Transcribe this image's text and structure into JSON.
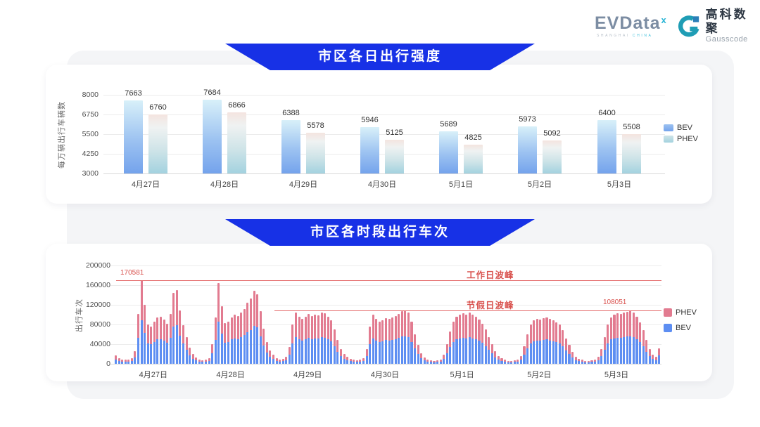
{
  "logo": {
    "evdata": "EVData",
    "evdata_sup": "x",
    "evdata_sub_1": "SHANGHAI ",
    "evdata_sub_2": "CHINA",
    "brand_cn": "高科数聚",
    "brand_en": "Gausscode"
  },
  "colors": {
    "banner_blue": "#1731e6",
    "bev_blue": "#5d8ef2",
    "phev_pink": "#e27b90",
    "annotation_red": "#d9534f"
  },
  "chart_data": [
    {
      "type": "bar",
      "title": "市区各日出行强度",
      "ylabel": "每万辆出行车辆数",
      "ymin": 3000,
      "ymax": 8000,
      "yticks": [
        8000,
        6750,
        5500,
        4250,
        3000
      ],
      "grid": true,
      "legend_position": "right",
      "categories": [
        "4月27日",
        "4月28日",
        "4月29日",
        "4月30日",
        "5月1日",
        "5月2日",
        "5月3日"
      ],
      "series": [
        {
          "name": "BEV",
          "values": [
            7663,
            7684,
            6388,
            5946,
            5689,
            5973,
            6400
          ]
        },
        {
          "name": "PHEV",
          "values": [
            6760,
            6866,
            5578,
            5125,
            4825,
            5092,
            5508
          ]
        }
      ]
    },
    {
      "type": "bar",
      "subtype": "stacked-hourly",
      "title": "市区各时段出行车次",
      "ylabel": "出行车次",
      "ymin": 0,
      "ymax": 200000,
      "yticks": [
        200000,
        160000,
        120000,
        80000,
        40000,
        0
      ],
      "grid": true,
      "legend_position": "right",
      "legend": [
        "PHEV",
        "BEV"
      ],
      "bev_share": 0.52,
      "annotations": [
        {
          "label": "工作日波峰",
          "value": 170581,
          "value_label": "170581"
        },
        {
          "label": "节假日波峰",
          "value": 108051,
          "value_label": "108051"
        }
      ],
      "days": [
        {
          "label": "4月27日",
          "totals": [
            17000,
            12000,
            9000,
            8000,
            8000,
            11000,
            26000,
            101000,
            170581,
            120000,
            80000,
            76000,
            86000,
            95000,
            96000,
            90000,
            82000,
            101000,
            145000,
            150000,
            109000,
            79000,
            55000,
            33000
          ]
        },
        {
          "label": "4月28日",
          "totals": [
            20000,
            13000,
            9000,
            7000,
            8000,
            12000,
            40000,
            94000,
            164000,
            117000,
            83000,
            86000,
            95000,
            100000,
            97000,
            104000,
            112000,
            124000,
            133000,
            148000,
            142000,
            107000,
            72000,
            45000
          ]
        },
        {
          "label": "4月29日",
          "totals": [
            27000,
            18000,
            12000,
            9000,
            10000,
            14000,
            35000,
            80000,
            104000,
            96000,
            92000,
            96000,
            101000,
            97000,
            100000,
            98000,
            105000,
            103000,
            96000,
            88000,
            70000,
            48000,
            30000,
            20000
          ]
        },
        {
          "label": "4月30日",
          "totals": [
            14000,
            10000,
            8000,
            7000,
            8000,
            11000,
            30000,
            76000,
            100000,
            91000,
            86000,
            89000,
            93000,
            91000,
            94000,
            97000,
            101000,
            107000,
            108000,
            104000,
            86000,
            60000,
            38000,
            22000
          ]
        },
        {
          "label": "5月1日",
          "totals": [
            13000,
            9000,
            7000,
            6000,
            7000,
            9000,
            18000,
            40000,
            66000,
            86000,
            96000,
            100000,
            103000,
            100000,
            104000,
            100000,
            96000,
            90000,
            82000,
            70000,
            54000,
            40000,
            26000,
            16000
          ]
        },
        {
          "label": "5月2日",
          "totals": [
            11000,
            8000,
            6000,
            6000,
            7000,
            9000,
            16000,
            36000,
            60000,
            80000,
            88000,
            92000,
            90000,
            93000,
            95000,
            92000,
            88000,
            85000,
            80000,
            68000,
            52000,
            38000,
            24000,
            14000
          ]
        },
        {
          "label": "5月3日",
          "totals": [
            10000,
            8000,
            6000,
            6000,
            7000,
            9000,
            14000,
            30000,
            55000,
            80000,
            95000,
            100000,
            103000,
            101000,
            104000,
            106000,
            108051,
            104000,
            96000,
            85000,
            68000,
            48000,
            30000,
            18000
          ]
        }
      ],
      "trailing_totals": [
        15000,
        32000
      ]
    }
  ]
}
